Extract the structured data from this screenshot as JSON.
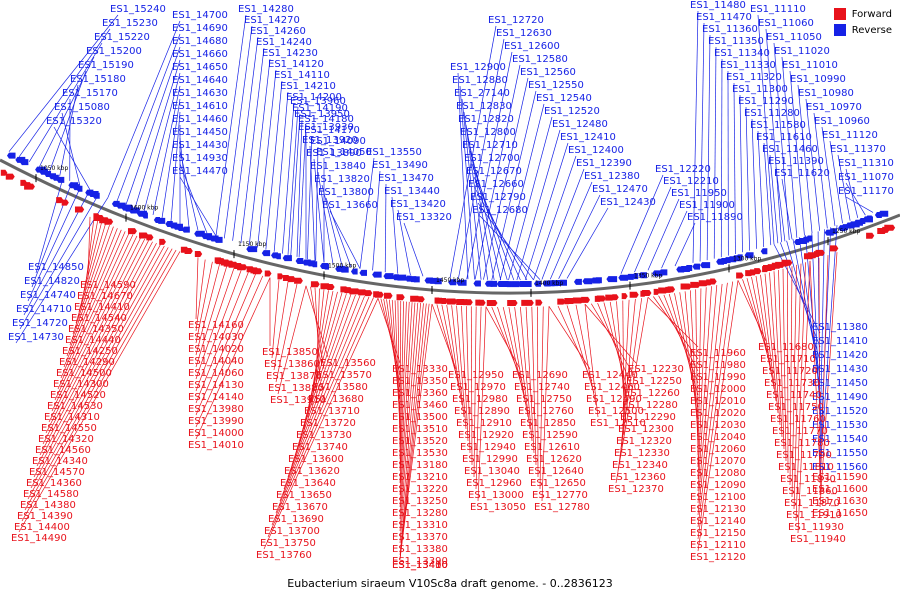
{
  "legend": {
    "forward_label": "Forward",
    "reverse_label": "Reverse",
    "forward_color": "#e8121b",
    "reverse_color": "#1622e6"
  },
  "caption": "Eubacterium siraeum V10Sc8a draft genome. - 0..2836123",
  "ticks": [
    "1050 kbp",
    "1600 kbp",
    "1150 kbp",
    "1500 kbp",
    "1450 kbp",
    "1400 kbp",
    "1350 kbp",
    "1300 kbp",
    "1250 kbp"
  ],
  "reverse_labels": [
    "ES1_15240",
    "ES1_15230",
    "ES1_15220",
    "ES1_15200",
    "ES1_15190",
    "ES1_15180",
    "ES1_15170",
    "ES1_15080",
    "ES1_15320",
    "ES1_14700",
    "ES1_14690",
    "ES1_14680",
    "ES1_14660",
    "ES1_14650",
    "ES1_14640",
    "ES1_14630",
    "ES1_14610",
    "ES1_14460",
    "ES1_14450",
    "ES1_14430",
    "ES1_14930",
    "ES1_14470",
    "ES1_14280",
    "ES1_14270",
    "ES1_14260",
    "ES1_14240",
    "ES1_14230",
    "ES1_14120",
    "ES1_14110",
    "ES1_14210",
    "ES1_14200",
    "ES1_14190",
    "ES1_14180",
    "ES1_14170",
    "ES1_14090",
    "ES1_14050",
    "ES1_13960",
    "ES1_13950",
    "ES1_13930",
    "ES1_13920",
    "ES1_13890",
    "ES1_13840",
    "ES1_13820",
    "ES1_13800",
    "ES1_13660",
    "ES1_13550",
    "ES1_13490",
    "ES1_13470",
    "ES1_13440",
    "ES1_13420",
    "ES1_13320",
    "ES1_12720",
    "ES1_12630",
    "ES1_12600",
    "ES1_12580",
    "ES1_12560",
    "ES1_12550",
    "ES1_12540",
    "ES1_12520",
    "ES1_12480",
    "ES1_12410",
    "ES1_12400",
    "ES1_12390",
    "ES1_12380",
    "ES1_12470",
    "ES1_12430",
    "ES1_12900",
    "ES1_12880",
    "ES1_27140",
    "ES1_12830",
    "ES1_12820",
    "ES1_12800",
    "ES1_12710",
    "ES1_12700",
    "ES1_12670",
    "ES1_12660",
    "ES1_12790",
    "ES1_12680",
    "ES1_12220",
    "ES1_12210",
    "ES1_11950",
    "ES1_11900",
    "ES1_11890",
    "ES1_11480",
    "ES1_11470",
    "ES1_11360",
    "ES1_11350",
    "ES1_11340",
    "ES1_11330",
    "ES1_11320",
    "ES1_11300",
    "ES1_11290",
    "ES1_11280",
    "ES1_11580",
    "ES1_11610",
    "ES1_11460",
    "ES1_11390",
    "ES1_11620",
    "ES1_11110",
    "ES1_11060",
    "ES1_11050",
    "ES1_11020",
    "ES1_11010",
    "ES1_10990",
    "ES1_10980",
    "ES1_10970",
    "ES1_10960",
    "ES1_11120",
    "ES1_11370",
    "ES1_11310",
    "ES1_11070",
    "ES1_11170",
    "ES1_14850",
    "ES1_14820",
    "ES1_14740",
    "ES1_14710",
    "ES1_14720",
    "ES1_14730",
    "ES1_11380",
    "ES1_11410",
    "ES1_11420",
    "ES1_11430",
    "ES1_11450",
    "ES1_11490",
    "ES1_11520",
    "ES1_11530",
    "ES1_11540",
    "ES1_11550",
    "ES1_11560"
  ],
  "forward_labels": [
    "ES1_14590",
    "ES1_14670",
    "ES1_14410",
    "ES1_14540",
    "ES1_14350",
    "ES1_14440",
    "ES1_14250",
    "ES1_14290",
    "ES1_14500",
    "ES1_14300",
    "ES1_14520",
    "ES1_14530",
    "ES1_14310",
    "ES1_14550",
    "ES1_14320",
    "ES1_14560",
    "ES1_14340",
    "ES1_14570",
    "ES1_14360",
    "ES1_14580",
    "ES1_14380",
    "ES1_14390",
    "ES1_14400",
    "ES1_14490",
    "ES1_14160",
    "ES1_14030",
    "ES1_14020",
    "ES1_14040",
    "ES1_14060",
    "ES1_14130",
    "ES1_14140",
    "ES1_13980",
    "ES1_13990",
    "ES1_14000",
    "ES1_14010",
    "ES1_13850",
    "ES1_13860",
    "ES1_13870",
    "ES1_13880",
    "ES1_13910",
    "ES1_13560",
    "ES1_13570",
    "ES1_13580",
    "ES1_13680",
    "ES1_13710",
    "ES1_13720",
    "ES1_13730",
    "ES1_13740",
    "ES1_13600",
    "ES1_13620",
    "ES1_13640",
    "ES1_13650",
    "ES1_13670",
    "ES1_13690",
    "ES1_13700",
    "ES1_13750",
    "ES1_13760",
    "ES1_13330",
    "ES1_13350",
    "ES1_13360",
    "ES1_13460",
    "ES1_13500",
    "ES1_13510",
    "ES1_13520",
    "ES1_13530",
    "ES1_13180",
    "ES1_13210",
    "ES1_13220",
    "ES1_13250",
    "ES1_13280",
    "ES1_13310",
    "ES1_13370",
    "ES1_13380",
    "ES1_13390",
    "ES1_13400",
    "ES1_13410",
    "ES1_13430",
    "ES1_12950",
    "ES1_12970",
    "ES1_12980",
    "ES1_12890",
    "ES1_12910",
    "ES1_12920",
    "ES1_12940",
    "ES1_12990",
    "ES1_13040",
    "ES1_12960",
    "ES1_13000",
    "ES1_13050",
    "ES1_12690",
    "ES1_12740",
    "ES1_12750",
    "ES1_12760",
    "ES1_12850",
    "ES1_12590",
    "ES1_12610",
    "ES1_12620",
    "ES1_12640",
    "ES1_12650",
    "ES1_12770",
    "ES1_12780",
    "ES1_12440",
    "ES1_12460",
    "ES1_12490",
    "ES1_12500",
    "ES1_12510",
    "ES1_12230",
    "ES1_12250",
    "ES1_12260",
    "ES1_12280",
    "ES1_12290",
    "ES1_12300",
    "ES1_12320",
    "ES1_12330",
    "ES1_12340",
    "ES1_12360",
    "ES1_12370",
    "ES1_11960",
    "ES1_11980",
    "ES1_11990",
    "ES1_12000",
    "ES1_12010",
    "ES1_12020",
    "ES1_12030",
    "ES1_12040",
    "ES1_12060",
    "ES1_12070",
    "ES1_12080",
    "ES1_12090",
    "ES1_12100",
    "ES1_12130",
    "ES1_12140",
    "ES1_12150",
    "ES1_12110",
    "ES1_12120",
    "ES1_11680",
    "ES1_11710",
    "ES1_11720",
    "ES1_11730",
    "ES1_11740",
    "ES1_11750",
    "ES1_11760",
    "ES1_11770",
    "ES1_11780",
    "ES1_11790",
    "ES1_11810",
    "ES1_11830",
    "ES1_11860",
    "ES1_11870",
    "ES1_11910",
    "ES1_11930",
    "ES1_11940",
    "ES1_11590",
    "ES1_11600",
    "ES1_11630",
    "ES1_11650"
  ]
}
